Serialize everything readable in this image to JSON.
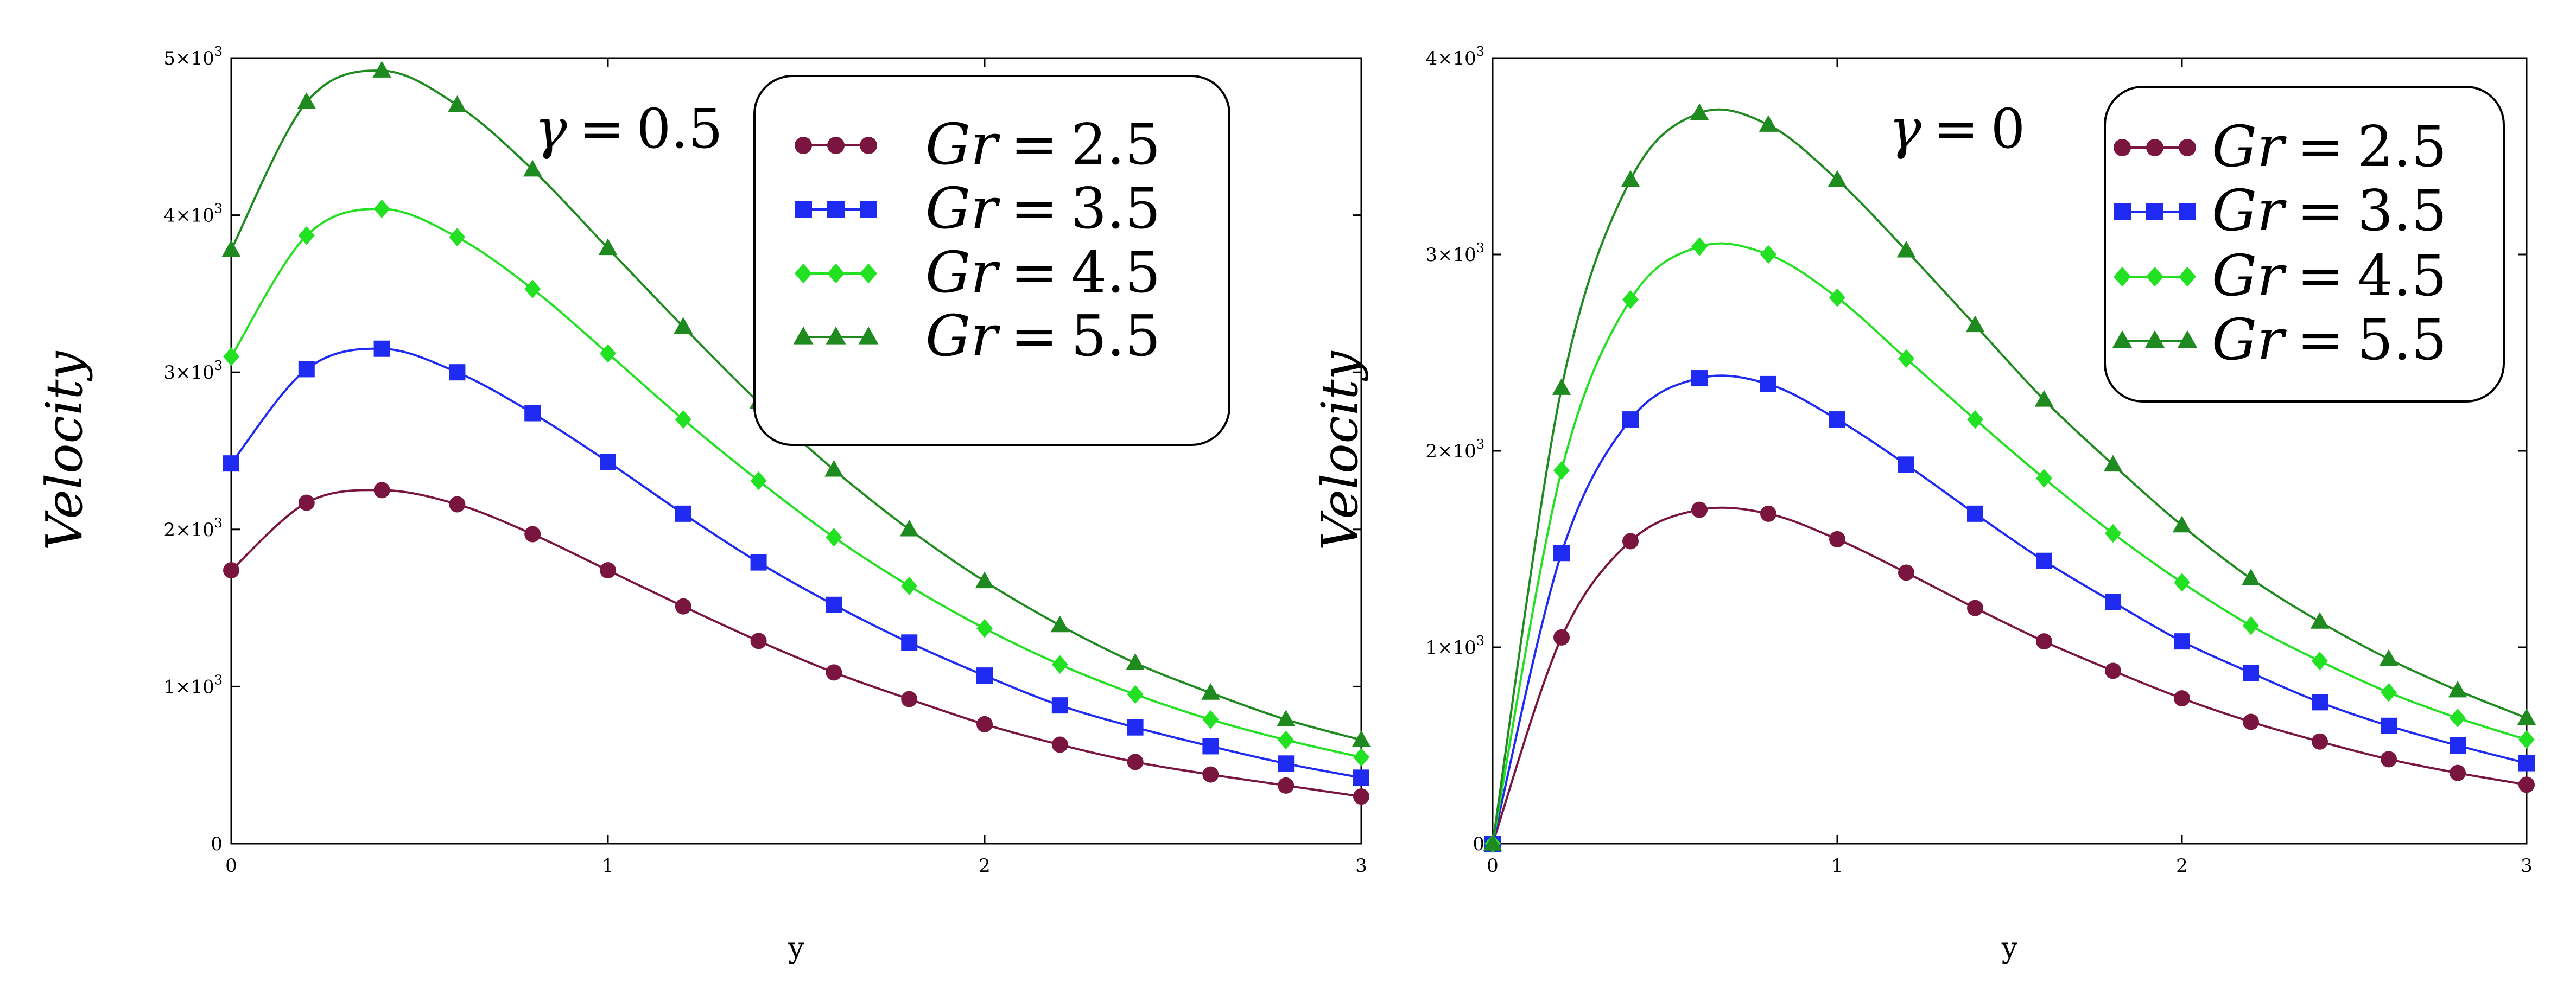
{
  "chart_data": [
    {
      "type": "line",
      "annotation": {
        "symbol": "γ",
        "operator": "=",
        "value": "0.5"
      },
      "xlabel": "y",
      "ylabel": "Velocity",
      "xlim": [
        0,
        3
      ],
      "ylim": [
        0,
        5000
      ],
      "x_ticks": [
        "0",
        "1",
        "2",
        "3"
      ],
      "y_ticks": [
        {
          "value": 0,
          "label": "0"
        },
        {
          "value": 1000,
          "label": "1×10",
          "exp": "3"
        },
        {
          "value": 2000,
          "label": "2×10",
          "exp": "3"
        },
        {
          "value": 3000,
          "label": "3×10",
          "exp": "3"
        },
        {
          "value": 4000,
          "label": "4×10",
          "exp": "3"
        },
        {
          "value": 5000,
          "label": "5×10",
          "exp": "3"
        }
      ],
      "legend_position": "top-right",
      "x": [
        0,
        0.2,
        0.4,
        0.6,
        0.8,
        1.0,
        1.2,
        1.4,
        1.6,
        1.8,
        2.0,
        2.2,
        2.4,
        2.6,
        2.8,
        3.0
      ],
      "series": [
        {
          "name": "Gr = 2.5",
          "label_var": "Gr",
          "label_val": "2.5",
          "color": "#7a1540",
          "marker": "circle",
          "values": [
            1740,
            2170,
            2250,
            2160,
            1970,
            1740,
            1510,
            1290,
            1090,
            920,
            760,
            630,
            520,
            440,
            370,
            300
          ]
        },
        {
          "name": "Gr = 3.5",
          "label_var": "Gr",
          "label_val": "3.5",
          "color": "#1f2bf2",
          "marker": "square",
          "values": [
            2420,
            3020,
            3150,
            3000,
            2740,
            2430,
            2100,
            1790,
            1520,
            1280,
            1070,
            880,
            740,
            620,
            510,
            420
          ]
        },
        {
          "name": "Gr = 4.5",
          "label_var": "Gr",
          "label_val": "4.5",
          "color": "#22e022",
          "marker": "diamond",
          "values": [
            3100,
            3870,
            4040,
            3860,
            3530,
            3120,
            2700,
            2310,
            1950,
            1640,
            1370,
            1140,
            950,
            790,
            660,
            550
          ]
        },
        {
          "name": "Gr = 5.5",
          "label_var": "Gr",
          "label_val": "5.5",
          "color": "#1f8a1f",
          "marker": "triangle",
          "values": [
            3780,
            4720,
            4920,
            4700,
            4290,
            3790,
            3290,
            2810,
            2380,
            2000,
            1670,
            1390,
            1150,
            960,
            790,
            660
          ]
        }
      ]
    },
    {
      "type": "line",
      "annotation": {
        "symbol": "γ",
        "operator": "=",
        "value": "0"
      },
      "xlabel": "y",
      "ylabel": "Velocity",
      "xlim": [
        0,
        3
      ],
      "ylim": [
        0,
        4000
      ],
      "x_ticks": [
        "0",
        "1",
        "2",
        "3"
      ],
      "y_ticks": [
        {
          "value": 0,
          "label": "0"
        },
        {
          "value": 1000,
          "label": "1×10",
          "exp": "3"
        },
        {
          "value": 2000,
          "label": "2×10",
          "exp": "3"
        },
        {
          "value": 3000,
          "label": "3×10",
          "exp": "3"
        },
        {
          "value": 4000,
          "label": "4×10",
          "exp": "3"
        }
      ],
      "legend_position": "top-right",
      "x": [
        0,
        0.2,
        0.4,
        0.6,
        0.8,
        1.0,
        1.2,
        1.4,
        1.6,
        1.8,
        2.0,
        2.2,
        2.4,
        2.6,
        2.8,
        3.0
      ],
      "series": [
        {
          "name": "Gr = 2.5",
          "label_var": "Gr",
          "label_val": "2.5",
          "color": "#7a1540",
          "marker": "circle",
          "values": [
            0,
            1050,
            1540,
            1700,
            1680,
            1550,
            1380,
            1200,
            1030,
            880,
            740,
            620,
            520,
            430,
            360,
            300
          ]
        },
        {
          "name": "Gr = 3.5",
          "label_var": "Gr",
          "label_val": "3.5",
          "color": "#1f2bf2",
          "marker": "square",
          "values": [
            0,
            1480,
            2160,
            2370,
            2340,
            2160,
            1930,
            1680,
            1440,
            1230,
            1030,
            870,
            720,
            600,
            500,
            410
          ]
        },
        {
          "name": "Gr = 4.5",
          "label_var": "Gr",
          "label_val": "4.5",
          "color": "#22e022",
          "marker": "diamond",
          "values": [
            0,
            1900,
            2770,
            3040,
            3000,
            2780,
            2470,
            2160,
            1860,
            1580,
            1330,
            1110,
            930,
            770,
            640,
            530
          ]
        },
        {
          "name": "Gr = 5.5",
          "label_var": "Gr",
          "label_val": "5.5",
          "color": "#1f8a1f",
          "marker": "triangle",
          "values": [
            0,
            2320,
            3380,
            3720,
            3660,
            3380,
            3020,
            2640,
            2260,
            1930,
            1620,
            1350,
            1130,
            940,
            780,
            640
          ]
        }
      ]
    }
  ]
}
